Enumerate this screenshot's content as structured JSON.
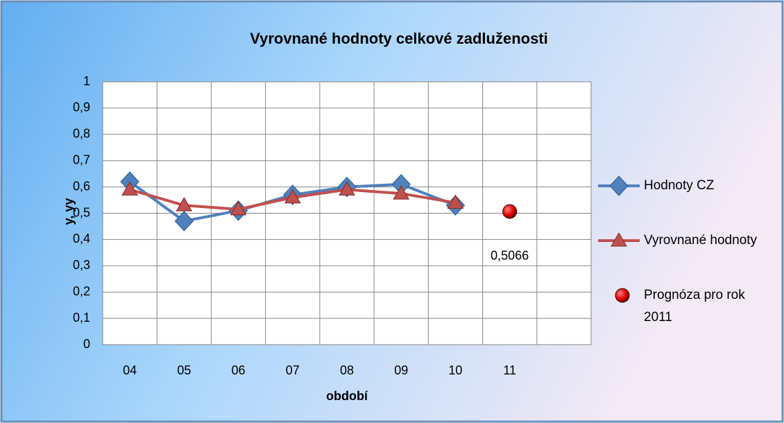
{
  "chart_data": {
    "type": "line",
    "title": "Vyrovnané hodnoty celkové zadluženosti",
    "x_label": "období",
    "y_label": "y, yy",
    "categories": [
      "04",
      "05",
      "06",
      "07",
      "08",
      "09",
      "10",
      "11",
      null
    ],
    "series": [
      {
        "name": "Hodnoty CZ",
        "color": "#4f81bd",
        "marker": "diamond",
        "values": [
          0.62,
          0.47,
          0.51,
          0.57,
          0.6,
          0.61,
          0.53,
          null,
          null
        ]
      },
      {
        "name": "Vyrovnané hodnoty",
        "color": "#c0504d",
        "marker": "triangle",
        "values": [
          0.59,
          0.53,
          0.515,
          0.56,
          0.59,
          0.575,
          0.54,
          null,
          null
        ]
      },
      {
        "name": "Prognóza pro rok 2011",
        "color": "#e00000",
        "marker": "circle",
        "values": [
          null,
          null,
          null,
          null,
          null,
          null,
          null,
          0.5066,
          null
        ],
        "value_labels": [
          null,
          null,
          null,
          null,
          null,
          null,
          null,
          "0,5066",
          null
        ]
      }
    ],
    "ylim": [
      0,
      1
    ],
    "yticks": [
      0,
      {
        "value": 0.1,
        "label": "0,1"
      },
      {
        "value": 0.2,
        "label": "0,2"
      },
      {
        "value": 0.3,
        "label": "0,3"
      },
      {
        "value": 0.4,
        "label": "0,4"
      },
      {
        "value": 0.5,
        "label": "0,5"
      },
      {
        "value": 0.6,
        "label": "0,6"
      },
      {
        "value": 0.7,
        "label": "0,7"
      },
      {
        "value": 0.8,
        "label": "0,8"
      },
      {
        "value": 0.9,
        "label": "0,9"
      },
      1
    ],
    "grid": true,
    "legend": "right"
  }
}
